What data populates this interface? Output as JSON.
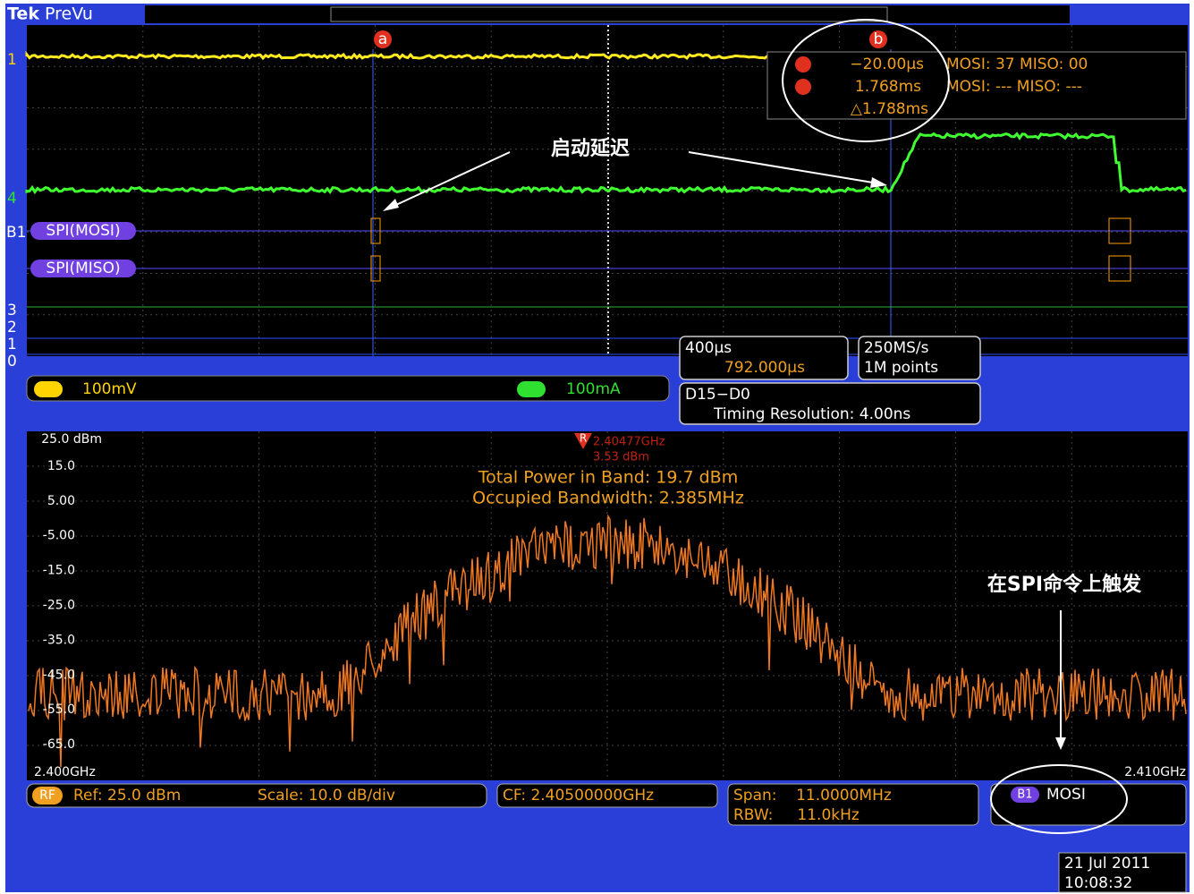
{
  "header": {
    "brand": "Tek",
    "mode": "PreVu"
  },
  "scope": {
    "channel_markers": [
      "1",
      "4",
      "B1",
      "3",
      "2",
      "1",
      "0"
    ],
    "bus_labels": [
      "SPI(MOSI)",
      "SPI(MISO)"
    ],
    "cursors": {
      "a": "a",
      "b": "b"
    },
    "readout": {
      "a_time": "−20.00µs",
      "b_time": "1.768ms",
      "delta": "△1.788ms",
      "a_bus": "MOSI: 37 MISO: 00",
      "b_bus": "MOSI: --- MISO: ---"
    },
    "annotation": "启动延迟",
    "ch1_scale": "100mV",
    "ch4_scale": "100mA",
    "timebase": {
      "scale": "400µs",
      "position": "792.000µs",
      "rate": "250MS/s",
      "points": "1M points",
      "digital": "D15−D0",
      "resolution": "Timing Resolution: 4.00ns"
    }
  },
  "spectrum": {
    "yticks": [
      "25.0 dBm",
      "15.0",
      "5.00",
      "-5.00",
      "-15.0",
      "-25.0",
      "-35.0",
      "-45.0",
      "-55.0",
      "-65.0"
    ],
    "x_start": "2.400GHz",
    "x_end": "2.410GHz",
    "marker": {
      "label": "R",
      "freq": "2.40477GHz",
      "level": "3.53 dBm"
    },
    "total_power": "Total Power in Band: 19.7 dBm",
    "occupied_bw": "Occupied Bandwidth: 2.385MHz",
    "annotation": "在SPI命令上触发",
    "badge": "RF",
    "ref": "Ref: 25.0 dBm",
    "scale": "Scale: 10.0 dB/div",
    "cf": "CF: 2.40500000GHz",
    "span": "Span:    11.0000MHz",
    "rbw": "RBW:     11.0kHz",
    "trigger_bus": "B1",
    "trigger_label": "MOSI"
  },
  "footer": {
    "date": "21 Jul  2011",
    "time": "10:08:32"
  }
}
